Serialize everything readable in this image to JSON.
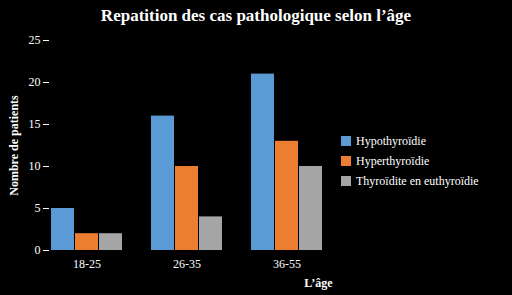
{
  "chart_data": {
    "type": "bar",
    "title": "Repatition des cas pathologique selon l’âge",
    "x_label": "L’âge",
    "y_label": "Nombre de patients",
    "categories": [
      "18-25",
      "26-35",
      "36-55"
    ],
    "series": [
      {
        "name": "Hypothyroïdie",
        "color": "#5b9bd5",
        "values": [
          5,
          16,
          21
        ]
      },
      {
        "name": "Hyperthyroïdie",
        "color": "#ed7d31",
        "values": [
          2,
          10,
          13
        ]
      },
      {
        "name": "Thyroïdite en euthyroïdie",
        "color": "#a5a5a5",
        "values": [
          2,
          4,
          10
        ]
      }
    ],
    "ylim": [
      0,
      25
    ],
    "yticks": [
      0,
      5,
      10,
      15,
      20,
      25
    ],
    "grid": false,
    "legend": "right"
  }
}
